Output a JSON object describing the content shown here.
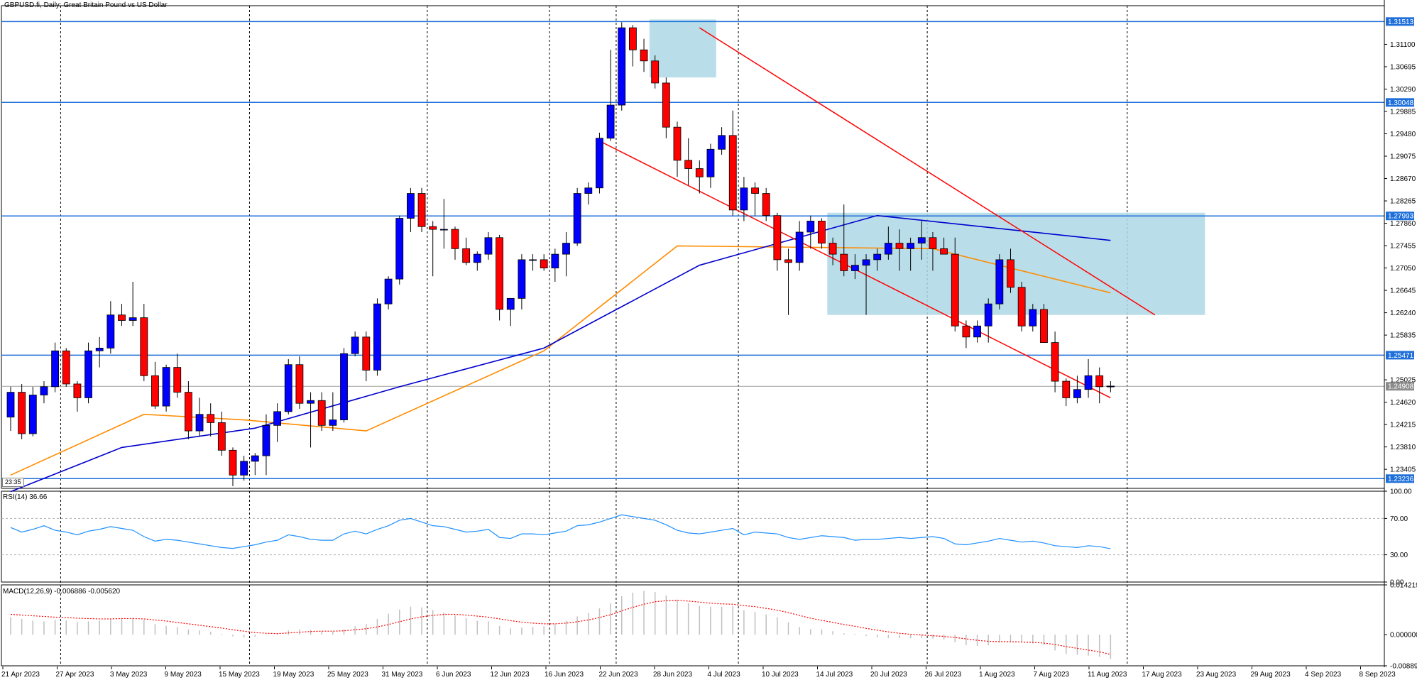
{
  "header": {
    "title": "GBPUSD.fi, Daily:  Great Britain Pound vs US Dollar"
  },
  "time_badge": "23:35",
  "rsi_title": "RSI(14) 36.66",
  "macd_title": "MACD(12,26,9) -0.006886 -0.005620",
  "colors": {
    "bull": "#0000ff",
    "bear": "#ff0000",
    "ma_fast": "#ff8c00",
    "ma_slow": "#0000cd",
    "hline": "#1e6fd9",
    "zone": "#add8e6",
    "trend": "#ff0000",
    "rsi": "#1e90ff",
    "macd_signal": "#ff0000",
    "macd_hist": "#c0c0c0"
  },
  "chart_data": [
    {
      "type": "candlestick",
      "symbol": "GBPUSD.fi",
      "timeframe": "Daily",
      "ylim": [
        1.2306,
        1.318
      ],
      "x_start": "2023-04-21",
      "x_labels": [
        "21 Apr 2023",
        "27 Apr 2023",
        "3 May 2023",
        "9 May 2023",
        "15 May 2023",
        "19 May 2023",
        "25 May 2023",
        "31 May 2023",
        "6 Jun 2023",
        "12 Jun 2023",
        "16 Jun 2023",
        "22 Jun 2023",
        "28 Jun 2023",
        "4 Jul 2023",
        "10 Jul 2023",
        "14 Jul 2023",
        "20 Jul 2023",
        "26 Jul 2023",
        "1 Aug 2023",
        "7 Aug 2023",
        "11 Aug 2023",
        "17 Aug 2023",
        "23 Aug 2023",
        "29 Aug 2023",
        "4 Sep 2023",
        "8 Sep 2023"
      ],
      "y_ticks": [
        1.311,
        1.30695,
        1.3029,
        1.29885,
        1.2948,
        1.29075,
        1.2867,
        1.28265,
        1.2786,
        1.27455,
        1.2705,
        1.26645,
        1.2624,
        1.25835,
        1.25025,
        1.2462,
        1.24215,
        1.2381,
        1.23405
      ],
      "price_labels": [
        {
          "value": 1.31513,
          "label": "1.31513",
          "style": "blue"
        },
        {
          "value": 1.30048,
          "label": "1.30048",
          "style": "blue"
        },
        {
          "value": 1.27993,
          "label": "1.27993",
          "style": "blue"
        },
        {
          "value": 1.25471,
          "label": "1.25471",
          "style": "blue"
        },
        {
          "value": 1.24908,
          "label": "1.24908",
          "style": "gray"
        },
        {
          "value": 1.23236,
          "label": "1.23236",
          "style": "blue"
        }
      ],
      "ohlc": [
        [
          1.2435,
          1.249,
          1.241,
          1.248
        ],
        [
          1.248,
          1.2495,
          1.2395,
          1.2405
        ],
        [
          1.2405,
          1.249,
          1.24,
          1.2475
        ],
        [
          1.2475,
          1.25,
          1.246,
          1.249
        ],
        [
          1.249,
          1.257,
          1.248,
          1.2555
        ],
        [
          1.2555,
          1.256,
          1.249,
          1.2495
        ],
        [
          1.2495,
          1.25,
          1.2445,
          1.247
        ],
        [
          1.247,
          1.257,
          1.246,
          1.2555
        ],
        [
          1.2555,
          1.258,
          1.2525,
          1.256
        ],
        [
          1.256,
          1.2645,
          1.255,
          1.262
        ],
        [
          1.262,
          1.264,
          1.26,
          1.261
        ],
        [
          1.261,
          1.268,
          1.26,
          1.2615
        ],
        [
          1.2615,
          1.264,
          1.25,
          1.251
        ],
        [
          1.251,
          1.2535,
          1.245,
          1.2455
        ],
        [
          1.2455,
          1.253,
          1.2445,
          1.2525
        ],
        [
          1.2525,
          1.255,
          1.247,
          1.248
        ],
        [
          1.248,
          1.25,
          1.2395,
          1.241
        ],
        [
          1.241,
          1.247,
          1.24,
          1.244
        ],
        [
          1.244,
          1.246,
          1.24,
          1.2425
        ],
        [
          1.2425,
          1.2445,
          1.2365,
          1.2375
        ],
        [
          1.2375,
          1.238,
          1.231,
          1.233
        ],
        [
          1.233,
          1.2365,
          1.232,
          1.2355
        ],
        [
          1.2355,
          1.237,
          1.233,
          1.2365
        ],
        [
          1.2365,
          1.244,
          1.233,
          1.242
        ],
        [
          1.242,
          1.246,
          1.239,
          1.2445
        ],
        [
          1.2445,
          1.254,
          1.244,
          1.253
        ],
        [
          1.253,
          1.2545,
          1.245,
          1.246
        ],
        [
          1.246,
          1.248,
          1.238,
          1.2465
        ],
        [
          1.2465,
          1.248,
          1.241,
          1.242
        ],
        [
          1.242,
          1.248,
          1.241,
          1.243
        ],
        [
          1.243,
          1.256,
          1.2425,
          1.255
        ],
        [
          1.255,
          1.259,
          1.2545,
          1.258
        ],
        [
          1.258,
          1.259,
          1.25,
          1.252
        ],
        [
          1.252,
          1.265,
          1.251,
          1.264
        ],
        [
          1.264,
          1.269,
          1.263,
          1.2685
        ],
        [
          1.2685,
          1.28,
          1.2675,
          1.2795
        ],
        [
          1.2795,
          1.285,
          1.277,
          1.284
        ],
        [
          1.284,
          1.285,
          1.277,
          1.278
        ],
        [
          1.278,
          1.279,
          1.269,
          1.2775
        ],
        [
          1.2775,
          1.283,
          1.274,
          1.2775
        ],
        [
          1.2775,
          1.278,
          1.272,
          1.274
        ],
        [
          1.274,
          1.276,
          1.271,
          1.2715
        ],
        [
          1.2715,
          1.2735,
          1.27,
          1.273
        ],
        [
          1.273,
          1.277,
          1.272,
          1.276
        ],
        [
          1.276,
          1.2765,
          1.261,
          1.263
        ],
        [
          1.263,
          1.265,
          1.26,
          1.265
        ],
        [
          1.265,
          1.273,
          1.263,
          1.272
        ],
        [
          1.272,
          1.273,
          1.27,
          1.272
        ],
        [
          1.272,
          1.273,
          1.27,
          1.2705
        ],
        [
          1.2705,
          1.274,
          1.268,
          1.273
        ],
        [
          1.273,
          1.277,
          1.269,
          1.275
        ],
        [
          1.275,
          1.285,
          1.2745,
          1.284
        ],
        [
          1.284,
          1.286,
          1.282,
          1.285
        ],
        [
          1.285,
          1.295,
          1.284,
          1.294
        ],
        [
          1.294,
          1.31,
          1.2935,
          1.3
        ],
        [
          1.3,
          1.315,
          1.299,
          1.314
        ],
        [
          1.314,
          1.3145,
          1.307,
          1.31
        ],
        [
          1.31,
          1.312,
          1.306,
          1.308
        ],
        [
          1.308,
          1.309,
          1.303,
          1.304
        ],
        [
          1.304,
          1.305,
          1.294,
          1.296
        ],
        [
          1.296,
          1.297,
          1.287,
          1.29
        ],
        [
          1.29,
          1.294,
          1.2855,
          1.2885
        ],
        [
          1.2885,
          1.29,
          1.284,
          1.287
        ],
        [
          1.287,
          1.293,
          1.285,
          1.292
        ],
        [
          1.292,
          1.296,
          1.291,
          1.2945
        ],
        [
          1.2945,
          1.299,
          1.28,
          1.281
        ],
        [
          1.281,
          1.287,
          1.279,
          1.285
        ],
        [
          1.285,
          1.286,
          1.28,
          1.284
        ],
        [
          1.284,
          1.285,
          1.279,
          1.28
        ],
        [
          1.28,
          1.2805,
          1.27,
          1.272
        ],
        [
          1.272,
          1.274,
          1.262,
          1.2715
        ],
        [
          1.2715,
          1.279,
          1.27,
          1.277
        ],
        [
          1.277,
          1.28,
          1.274,
          1.279
        ],
        [
          1.279,
          1.2795,
          1.274,
          1.275
        ],
        [
          1.275,
          1.276,
          1.271,
          1.273
        ],
        [
          1.273,
          1.282,
          1.269,
          1.27
        ],
        [
          1.27,
          1.273,
          1.2685,
          1.271
        ],
        [
          1.271,
          1.273,
          1.262,
          1.272
        ],
        [
          1.272,
          1.274,
          1.27,
          1.273
        ],
        [
          1.273,
          1.278,
          1.272,
          1.275
        ],
        [
          1.275,
          1.2775,
          1.27,
          1.274
        ],
        [
          1.274,
          1.276,
          1.27,
          1.275
        ],
        [
          1.275,
          1.279,
          1.272,
          1.276
        ],
        [
          1.276,
          1.277,
          1.27,
          1.274
        ],
        [
          1.274,
          1.276,
          1.273,
          1.273
        ],
        [
          1.273,
          1.276,
          1.259,
          1.26
        ],
        [
          1.26,
          1.261,
          1.256,
          1.258
        ],
        [
          1.258,
          1.261,
          1.257,
          1.26
        ],
        [
          1.26,
          1.265,
          1.257,
          1.264
        ],
        [
          1.264,
          1.273,
          1.263,
          1.272
        ],
        [
          1.272,
          1.274,
          1.266,
          1.267
        ],
        [
          1.267,
          1.268,
          1.259,
          1.26
        ],
        [
          1.26,
          1.264,
          1.259,
          1.263
        ],
        [
          1.263,
          1.264,
          1.257,
          1.257
        ],
        [
          1.257,
          1.259,
          1.248,
          1.25
        ],
        [
          1.25,
          1.2505,
          1.2455,
          1.247
        ],
        [
          1.247,
          1.251,
          1.246,
          1.2485
        ],
        [
          1.2485,
          1.254,
          1.247,
          1.251
        ],
        [
          1.251,
          1.2525,
          1.246,
          1.249
        ],
        [
          1.249,
          1.25,
          1.248,
          1.2491
        ]
      ],
      "ma_fast": {
        "points": [
          [
            1.233,
            0
          ],
          [
            1.244,
            12
          ],
          [
            1.243,
            21
          ],
          [
            1.241,
            32
          ],
          [
            1.2555,
            48
          ],
          [
            1.2745,
            60
          ],
          [
            1.274,
            83
          ],
          [
            1.266,
            99
          ]
        ]
      },
      "ma_slow": {
        "points": [
          [
            1.23,
            0
          ],
          [
            1.238,
            10
          ],
          [
            1.2415,
            22
          ],
          [
            1.249,
            35
          ],
          [
            1.256,
            48
          ],
          [
            1.271,
            62
          ],
          [
            1.28,
            78
          ],
          [
            1.2755,
            99
          ]
        ]
      },
      "trendlines": [
        {
          "from": [
            53,
            1.2935
          ],
          "to": [
            99,
            1.247
          ]
        },
        {
          "from": [
            62,
            1.314
          ],
          "to": [
            103,
            1.262
          ]
        }
      ],
      "zones": [
        {
          "from": 58,
          "to": 64,
          "y_high": 1.3155,
          "y_low": 1.305
        },
        {
          "from": 74,
          "to": 108,
          "y_high": 1.2805,
          "y_low": 1.262
        }
      ]
    },
    {
      "type": "line",
      "name": "RSI(14)",
      "ylim": [
        0,
        100
      ],
      "y_ticks": [
        100.0,
        70.0,
        30.0,
        0.0
      ],
      "levels": [
        70,
        30
      ],
      "values": [
        60,
        55,
        58,
        62,
        57,
        55,
        52,
        56,
        58,
        61,
        59,
        57,
        50,
        45,
        47,
        46,
        44,
        42,
        40,
        38,
        37,
        39,
        41,
        44,
        46,
        52,
        50,
        47,
        46,
        46,
        53,
        56,
        53,
        58,
        62,
        68,
        70,
        66,
        62,
        61,
        58,
        55,
        56,
        58,
        49,
        48,
        53,
        53,
        52,
        54,
        56,
        62,
        63,
        66,
        70,
        74,
        72,
        70,
        68,
        63,
        57,
        54,
        53,
        55,
        57,
        59,
        52,
        55,
        54,
        53,
        49,
        47,
        49,
        51,
        50,
        49,
        46,
        47,
        47,
        48,
        49,
        48,
        49,
        50,
        48,
        42,
        41,
        43,
        45,
        48,
        46,
        44,
        45,
        43,
        40,
        39,
        38,
        40,
        39,
        36.66
      ]
    },
    {
      "type": "bar",
      "name": "MACD(12,26,9)",
      "ylim": [
        -0.008891,
        0.014219
      ],
      "y_ticks": [
        0.014219,
        0.0,
        -0.008891
      ],
      "values": [
        0.005,
        0.0045,
        0.004,
        0.0038,
        0.0042,
        0.004,
        0.0036,
        0.0038,
        0.004,
        0.0045,
        0.0047,
        0.0048,
        0.0042,
        0.003,
        0.0025,
        0.0022,
        0.0015,
        0.0012,
        0.0008,
        0.0002,
        -0.0005,
        -0.0008,
        -0.0006,
        -0.0002,
        0.0003,
        0.0012,
        0.0015,
        0.0013,
        0.001,
        0.0009,
        0.0016,
        0.0024,
        0.003,
        0.0045,
        0.006,
        0.0072,
        0.008,
        0.0078,
        0.007,
        0.0063,
        0.0055,
        0.0047,
        0.004,
        0.0038,
        0.0025,
        0.0018,
        0.002,
        0.0022,
        0.0024,
        0.003,
        0.004,
        0.0052,
        0.0062,
        0.0075,
        0.009,
        0.011,
        0.012,
        0.0125,
        0.0122,
        0.0112,
        0.01,
        0.009,
        0.0082,
        0.008,
        0.008,
        0.0082,
        0.007,
        0.0065,
        0.0058,
        0.005,
        0.0035,
        0.0022,
        0.0016,
        0.0015,
        0.001,
        0.0004,
        0.0002,
        -0.0004,
        -0.0008,
        -0.001,
        -0.001,
        -0.001,
        -0.001,
        -0.0011,
        -0.0014,
        -0.0022,
        -0.003,
        -0.0032,
        -0.003,
        -0.0022,
        -0.002,
        -0.0022,
        -0.0025,
        -0.003,
        -0.0045,
        -0.0055,
        -0.0058,
        -0.006,
        -0.0063,
        -0.006886
      ],
      "signal": [
        0.0058,
        0.0056,
        0.0054,
        0.0052,
        0.005,
        0.0049,
        0.0047,
        0.0046,
        0.0045,
        0.0045,
        0.0046,
        0.0046,
        0.0045,
        0.0042,
        0.0039,
        0.0035,
        0.0031,
        0.0027,
        0.0023,
        0.0019,
        0.0014,
        0.001,
        0.0006,
        0.0004,
        0.0003,
        0.0005,
        0.0007,
        0.0009,
        0.001,
        0.001,
        0.0011,
        0.0014,
        0.0017,
        0.0022,
        0.0029,
        0.0037,
        0.0045,
        0.0051,
        0.0055,
        0.0058,
        0.0058,
        0.0056,
        0.0053,
        0.005,
        0.0045,
        0.004,
        0.0036,
        0.0033,
        0.0031,
        0.0031,
        0.0033,
        0.0037,
        0.0042,
        0.0049,
        0.0057,
        0.0068,
        0.0078,
        0.0087,
        0.0094,
        0.0097,
        0.0098,
        0.0096,
        0.0093,
        0.009,
        0.0088,
        0.0087,
        0.0083,
        0.008,
        0.0075,
        0.007,
        0.0063,
        0.0055,
        0.0047,
        0.0041,
        0.0035,
        0.0029,
        0.0024,
        0.0018,
        0.0013,
        0.0008,
        0.0004,
        0.0001,
        -0.0001,
        -0.0003,
        -0.0005,
        -0.0008,
        -0.0012,
        -0.0016,
        -0.0019,
        -0.002,
        -0.002,
        -0.0021,
        -0.0022,
        -0.0024,
        -0.0028,
        -0.0034,
        -0.0039,
        -0.0044,
        -0.0049,
        -0.00562
      ]
    }
  ]
}
